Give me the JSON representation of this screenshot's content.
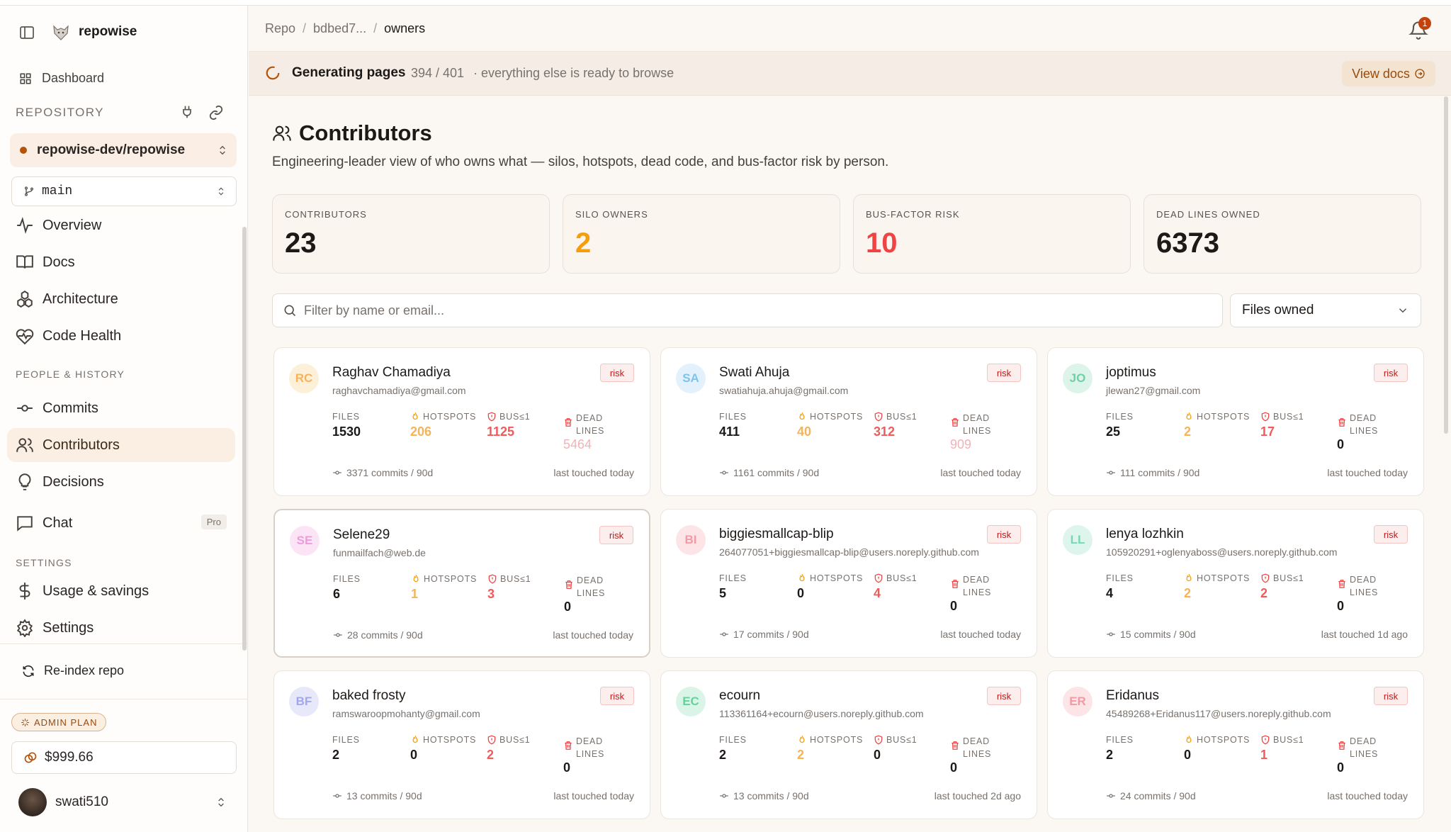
{
  "app": {
    "name": "repowise"
  },
  "sidebar": {
    "dashboard_label": "Dashboard",
    "repository_section": "REPOSITORY",
    "repo_name": "repowise-dev/repowise",
    "branch": "main",
    "nav_main": [
      {
        "label": "Overview",
        "icon": "activity-icon"
      },
      {
        "label": "Docs",
        "icon": "book-icon"
      },
      {
        "label": "Architecture",
        "icon": "modules-icon"
      },
      {
        "label": "Code Health",
        "icon": "heart-pulse-icon"
      }
    ],
    "people_section": "PEOPLE & HISTORY",
    "nav_people": [
      {
        "label": "Commits",
        "icon": "commit-icon"
      },
      {
        "label": "Contributors",
        "icon": "users-icon",
        "active": true
      },
      {
        "label": "Decisions",
        "icon": "lightbulb-icon"
      },
      {
        "label": "Chat",
        "icon": "message-icon",
        "badge": "Pro"
      }
    ],
    "settings_section": "SETTINGS",
    "nav_settings": [
      {
        "label": "Usage & savings",
        "icon": "dollar-icon"
      },
      {
        "label": "Settings",
        "icon": "gear-icon"
      }
    ],
    "reindex_label": "Re-index repo",
    "plan_badge": "ADMIN PLAN",
    "credit": "$999.66",
    "username": "swati510"
  },
  "header": {
    "breadcrumbs": [
      "Repo",
      "bdbed7...",
      "owners"
    ],
    "notification_count": "1",
    "generating": {
      "title": "Generating pages",
      "count": "394 / 401",
      "note": "· everything else is ready to browse",
      "progress": 0.9825,
      "button": "View docs"
    }
  },
  "page": {
    "title": "Contributors",
    "subtitle": "Engineering-leader view of who owns what — silos, hotspots, dead code, and bus-factor risk by person.",
    "stats": [
      {
        "label": "CONTRIBUTORS",
        "value": "23",
        "color": "#1c1917"
      },
      {
        "label": "SILO OWNERS",
        "value": "2",
        "color": "#f59e0b"
      },
      {
        "label": "BUS-FACTOR RISK",
        "value": "10",
        "color": "#ef4444"
      },
      {
        "label": "DEAD LINES OWNED",
        "value": "6373",
        "color": "#1c1917"
      }
    ],
    "filter_placeholder": "Filter by name or email...",
    "sort_value": "Files owned",
    "metric_labels": {
      "files": "FILES",
      "hotspots": "HOTSPOTS",
      "bus": "BUS≤1",
      "dead1": "DEAD",
      "dead2": "LINES"
    },
    "risk_label": "risk",
    "contributors": [
      {
        "initials": "RC",
        "name": "Raghav Chamadiya",
        "email": "raghavchamadiya@gmail.com",
        "files": "1530",
        "hotspots": "206",
        "bus": "1125",
        "dead": "5464",
        "commits": "3371 commits / 90d",
        "last": "last touched today",
        "av_bg": "#fdf0d9",
        "av_fg": "#f6b35c",
        "dead_faded": true
      },
      {
        "initials": "SA",
        "name": "Swati Ahuja",
        "email": "swatiahuja.ahuja@gmail.com",
        "files": "411",
        "hotspots": "40",
        "bus": "312",
        "dead": "909",
        "commits": "1161 commits / 90d",
        "last": "last touched today",
        "av_bg": "#e2f1fb",
        "av_fg": "#7cc4ec",
        "dead_faded": true
      },
      {
        "initials": "JO",
        "name": "joptimus",
        "email": "jlewan27@gmail.com",
        "files": "25",
        "hotspots": "2",
        "bus": "17",
        "dead": "0",
        "commits": "111 commits / 90d",
        "last": "last touched today",
        "av_bg": "#ddf4ea",
        "av_fg": "#6fd0a6",
        "dead_faded": false
      },
      {
        "initials": "SE",
        "name": "Selene29",
        "email": "funmailfach@web.de",
        "files": "6",
        "hotspots": "1",
        "bus": "3",
        "dead": "0",
        "commits": "28 commits / 90d",
        "last": "last touched today",
        "av_bg": "#fbe4f6",
        "av_fg": "#ee9bdc",
        "dead_faded": false
      },
      {
        "initials": "BI",
        "name": "biggiesmallcap-blip",
        "email": "264077051+biggiesmallcap-blip@users.noreply.github.com",
        "files": "5",
        "hotspots": "0",
        "bus": "4",
        "dead": "0",
        "commits": "17 commits / 90d",
        "last": "last touched today",
        "av_bg": "#fde4e6",
        "av_fg": "#f29aa3",
        "dead_faded": false
      },
      {
        "initials": "LL",
        "name": "lenya lozhkin",
        "email": "105920291+oglenyaboss@users.noreply.github.com",
        "files": "4",
        "hotspots": "2",
        "bus": "2",
        "dead": "0",
        "commits": "15 commits / 90d",
        "last": "last touched 1d ago",
        "av_bg": "#ddf5ec",
        "av_fg": "#7ad6b2",
        "dead_faded": false
      },
      {
        "initials": "BF",
        "name": "baked frosty",
        "email": "ramswaroopmohanty@gmail.com",
        "files": "2",
        "hotspots": "0",
        "bus": "2",
        "dead": "0",
        "commits": "13 commits / 90d",
        "last": "last touched today",
        "av_bg": "#e8e8fb",
        "av_fg": "#a3a6ee",
        "dead_faded": false
      },
      {
        "initials": "EC",
        "name": "ecourn",
        "email": "113361164+ecourn@users.noreply.github.com",
        "files": "2",
        "hotspots": "2",
        "bus": "0",
        "dead": "0",
        "commits": "13 commits / 90d",
        "last": "last touched 2d ago",
        "av_bg": "#daf5e7",
        "av_fg": "#62d39b",
        "dead_faded": false
      },
      {
        "initials": "ER",
        "name": "Eridanus",
        "email": "45489268+Eridanus117@users.noreply.github.com",
        "files": "2",
        "hotspots": "0",
        "bus": "1",
        "dead": "0",
        "commits": "24 commits / 90d",
        "last": "last touched today",
        "av_bg": "#fde4e6",
        "av_fg": "#f29aa3",
        "dead_faded": false
      }
    ]
  },
  "colors": {
    "accent": "#c2410c",
    "hotspot": "#f59e0b",
    "bus": "#ef4444",
    "dead": "#f0a9ad"
  }
}
